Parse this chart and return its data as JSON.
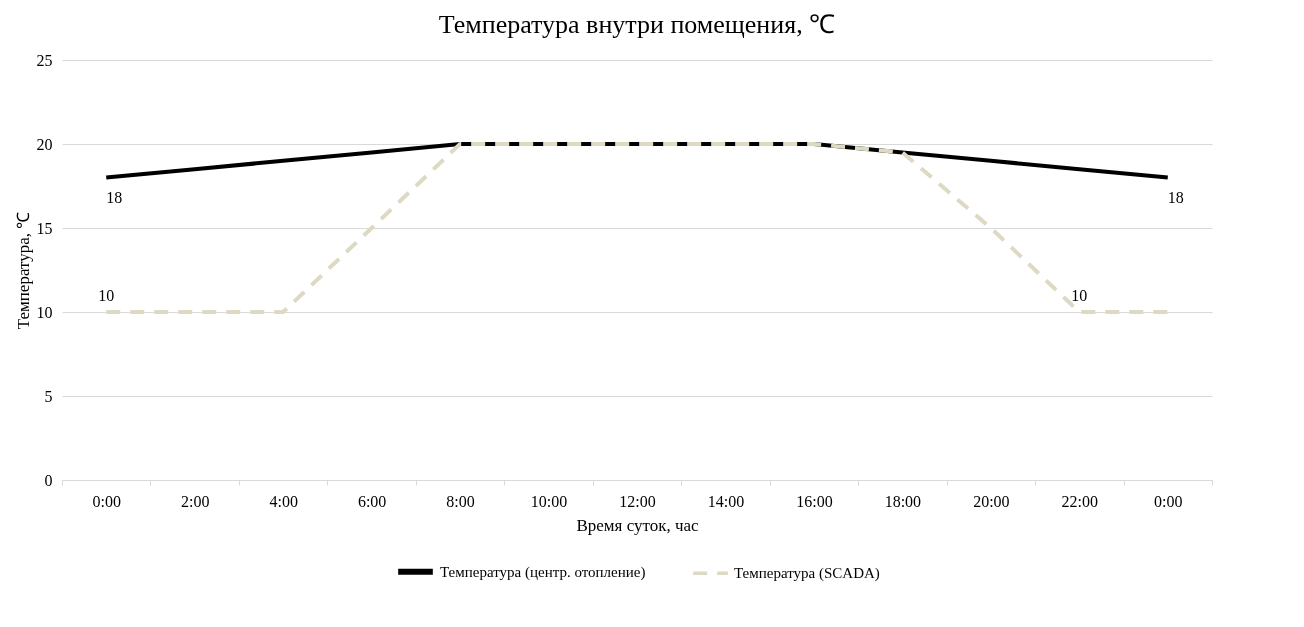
{
  "chart_data": {
    "type": "line",
    "title": "Температура внутри помещения, ℃",
    "xlabel": "Время суток, час",
    "ylabel": "Температура, ℃",
    "categories": [
      "0:00",
      "2:00",
      "4:00",
      "6:00",
      "8:00",
      "10:00",
      "12:00",
      "14:00",
      "16:00",
      "18:00",
      "20:00",
      "22:00",
      "0:00"
    ],
    "series": [
      {
        "name": "Температура (центр. отопление)",
        "color": "#000000",
        "line_style": "solid",
        "values": [
          18,
          18.5,
          19,
          19.5,
          20,
          20,
          20,
          20,
          20,
          19.5,
          19,
          18.5,
          18
        ],
        "value_labels": [
          "18",
          null,
          null,
          null,
          null,
          null,
          null,
          null,
          null,
          null,
          null,
          null,
          "18"
        ]
      },
      {
        "name": "Температура (SCADA)",
        "color": "#ddd9c3",
        "line_style": "dashed",
        "values": [
          10,
          10,
          10,
          15,
          20,
          20,
          20,
          20,
          20,
          19.5,
          15,
          10,
          10
        ],
        "value_labels": [
          "10",
          null,
          null,
          null,
          null,
          null,
          null,
          null,
          null,
          null,
          null,
          "10",
          null
        ]
      }
    ],
    "ylim": [
      0,
      25
    ],
    "yticks": [
      0,
      5,
      10,
      15,
      20,
      25
    ],
    "grid": "y",
    "legend": "bottom",
    "marker": "none"
  }
}
